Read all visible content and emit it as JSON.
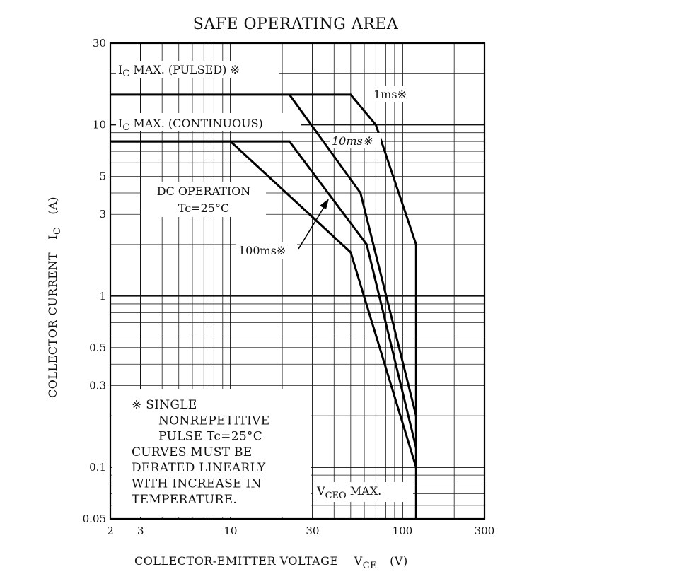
{
  "chart_data": {
    "type": "line",
    "title": "SAFE OPERATING AREA",
    "xlabel": {
      "main": "COLLECTOR-EMITTER VOLTAGE",
      "symbol": "V",
      "sub": "CE",
      "unit": "(V)"
    },
    "ylabel": {
      "main": "COLLECTOR CURRENT",
      "symbol": "I",
      "sub": "C",
      "unit": "(A)"
    },
    "xscale": "log",
    "yscale": "log",
    "xlim": [
      2,
      300
    ],
    "ylim": [
      0.05,
      30
    ],
    "grid": true,
    "x_tick_labels": [
      {
        "value": 2,
        "label": "2"
      },
      {
        "value": 3,
        "label": "3"
      },
      {
        "value": 10,
        "label": "10"
      },
      {
        "value": 30,
        "label": "30"
      },
      {
        "value": 100,
        "label": "100"
      },
      {
        "value": 300,
        "label": "300"
      }
    ],
    "y_tick_labels": [
      {
        "value": 30,
        "label": "30"
      },
      {
        "value": 10,
        "label": "10"
      },
      {
        "value": 5,
        "label": "5"
      },
      {
        "value": 3,
        "label": "3"
      },
      {
        "value": 1,
        "label": "1"
      },
      {
        "value": 0.5,
        "label": "0.5"
      },
      {
        "value": 0.3,
        "label": "0.3"
      },
      {
        "value": 0.1,
        "label": "0.1"
      },
      {
        "value": 0.05,
        "label": "0.05"
      }
    ],
    "series": [
      {
        "points": [
          [
            2,
            15
          ],
          [
            50,
            15
          ],
          [
            70,
            10
          ],
          [
            120,
            2
          ],
          [
            120,
            0.05
          ]
        ]
      },
      {
        "points": [
          [
            22,
            15
          ],
          [
            57,
            4
          ],
          [
            120,
            0.2
          ]
        ]
      },
      {
        "points": [
          [
            2,
            8
          ],
          [
            22,
            8
          ],
          [
            62,
            2
          ],
          [
            120,
            0.13
          ]
        ]
      },
      {
        "points": [
          [
            2,
            8
          ],
          [
            10,
            8
          ],
          [
            50,
            1.8
          ],
          [
            120,
            0.1
          ]
        ]
      }
    ],
    "annotations": {
      "ic_pulsed": {
        "symbol": "I",
        "sub": "C",
        "text": " MAX. (PULSED) ※"
      },
      "ic_continuous": {
        "symbol": "I",
        "sub": "C",
        "text": " MAX. (CONTINUOUS)"
      },
      "pulse_1ms": "1ms※",
      "pulse_10ms": "10ms※",
      "pulse_100ms": "100ms※",
      "dc_line1": "DC OPERATION",
      "dc_line2": "Tc=25°C",
      "vceo": {
        "symbol": "V",
        "sub": "CEO",
        "text": " MAX."
      },
      "note_lines": [
        "※  SINGLE",
        "NONREPETITIVE",
        "PULSE  Tc=25°C",
        "CURVES MUST BE",
        "DERATED LINEARLY",
        "WITH INCREASE IN",
        "TEMPERATURE."
      ]
    }
  }
}
